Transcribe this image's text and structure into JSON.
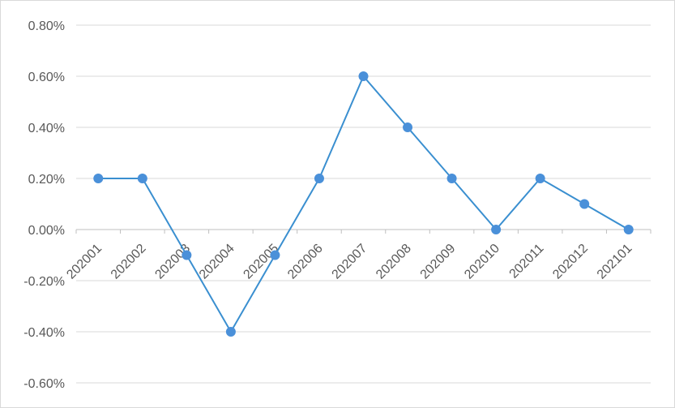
{
  "chart_data": {
    "type": "line",
    "title": "",
    "xlabel": "",
    "ylabel": "",
    "categories": [
      "202001",
      "202002",
      "202003",
      "202004",
      "202005",
      "202006",
      "202007",
      "202008",
      "202009",
      "202010",
      "202011",
      "202012",
      "202101"
    ],
    "series": [
      {
        "values": [
          0.2,
          0.2,
          -0.1,
          -0.4,
          -0.1,
          0.2,
          0.6,
          0.4,
          0.2,
          0.0,
          0.2,
          0.1,
          0.0
        ],
        "color": "#3a8fd0",
        "marker_color": "#4a90d9"
      }
    ],
    "ylim": [
      -0.6,
      0.8
    ],
    "y_ticks": [
      0.8,
      0.6,
      0.4,
      0.2,
      0.0,
      -0.2,
      -0.4,
      -0.6
    ],
    "y_tick_labels": [
      "0.80%",
      "0.60%",
      "0.40%",
      "0.20%",
      "0.00%",
      "-0.20%",
      "-0.40%",
      "-0.60%"
    ],
    "y_unit": "%",
    "grid": true,
    "legend": "none",
    "gridline_color": "#d9d9d9"
  }
}
